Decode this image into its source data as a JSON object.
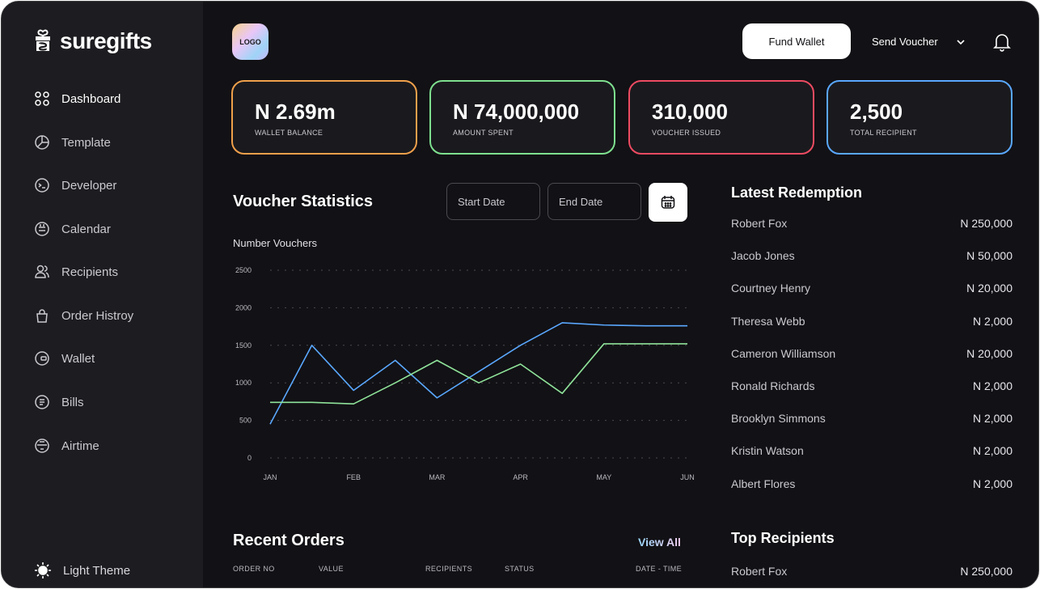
{
  "brand": {
    "name": "suregifts",
    "logo_label": "LOGO"
  },
  "sidebar": {
    "items": [
      {
        "label": "Dashboard",
        "icon": "grid-icon"
      },
      {
        "label": "Template",
        "icon": "pie-icon"
      },
      {
        "label": "Developer",
        "icon": "terminal-icon"
      },
      {
        "label": "Calendar",
        "icon": "calendar-icon"
      },
      {
        "label": "Recipients",
        "icon": "users-icon"
      },
      {
        "label": "Order Histroy",
        "icon": "bag-icon"
      },
      {
        "label": "Wallet",
        "icon": "wallet-icon"
      },
      {
        "label": "Bills",
        "icon": "receipt-icon"
      },
      {
        "label": "Airtime",
        "icon": "phone-icon"
      }
    ],
    "theme_label": "Light Theme"
  },
  "header": {
    "fund_wallet": "Fund Wallet",
    "send_voucher": "Send Voucher"
  },
  "stats": [
    {
      "value": "N 2.69m",
      "label": "WALLET BALANCE",
      "color": "#f0a04b"
    },
    {
      "value": "N 74,000,000",
      "label": "AMOUNT SPENT",
      "color": "#7ee08f"
    },
    {
      "value": "310,000",
      "label": "VOUCHER ISSUED",
      "color": "#ee4b62"
    },
    {
      "value": "2,500",
      "label": "TOTAL RECIPIENT",
      "color": "#5aa8ff"
    }
  ],
  "voucher_stats": {
    "title": "Voucher Statistics",
    "start_placeholder": "Start Date",
    "end_placeholder": "End Date"
  },
  "chart_data": {
    "type": "line",
    "ylabel": "Number Vouchers",
    "categories": [
      "JAN",
      "FEB",
      "MAR",
      "APR",
      "MAY",
      "JUN"
    ],
    "yticks": [
      "2500",
      "2000",
      "1500",
      "1000",
      "500",
      "0"
    ],
    "ylim": [
      0,
      2500
    ],
    "grid": true,
    "series": [
      {
        "color": "#5aa8ff",
        "x": [
          0,
          0.5,
          1,
          1.5,
          2,
          2.5,
          3,
          3.5,
          4,
          4.5,
          5
        ],
        "values": [
          450,
          1500,
          900,
          1300,
          800,
          1150,
          1500,
          1800,
          1770,
          1760,
          1760
        ]
      },
      {
        "color": "#8fe39a",
        "x": [
          0,
          0.5,
          1,
          1.5,
          2,
          2.5,
          3,
          3.5,
          4,
          4.5,
          5
        ],
        "values": [
          740,
          740,
          720,
          1000,
          1300,
          1000,
          1250,
          860,
          1520,
          1520,
          1520
        ]
      }
    ]
  },
  "latest_redemption": {
    "title": "Latest Redemption",
    "rows": [
      {
        "name": "Robert Fox",
        "amount": "N 250,000"
      },
      {
        "name": "Jacob Jones",
        "amount": "N 50,000"
      },
      {
        "name": "Courtney Henry",
        "amount": "N 20,000"
      },
      {
        "name": "Theresa Webb",
        "amount": "N 2,000"
      },
      {
        "name": "Cameron Williamson",
        "amount": "N 20,000"
      },
      {
        "name": "Ronald Richards",
        "amount": "N 2,000"
      },
      {
        "name": "Brooklyn Simmons",
        "amount": "N 2,000"
      },
      {
        "name": "Kristin Watson",
        "amount": "N 2,000"
      },
      {
        "name": "Albert Flores",
        "amount": "N 2,000"
      }
    ]
  },
  "recent_orders": {
    "title": "Recent Orders",
    "view_all": "View All",
    "columns": [
      "ORDER NO",
      "VALUE",
      "RECIPIENTS",
      "STATUS",
      "DATE - TIME"
    ]
  },
  "top_recipients": {
    "title": "Top Recipients",
    "rows": [
      {
        "name": "Robert Fox",
        "amount": "N 250,000"
      }
    ]
  }
}
